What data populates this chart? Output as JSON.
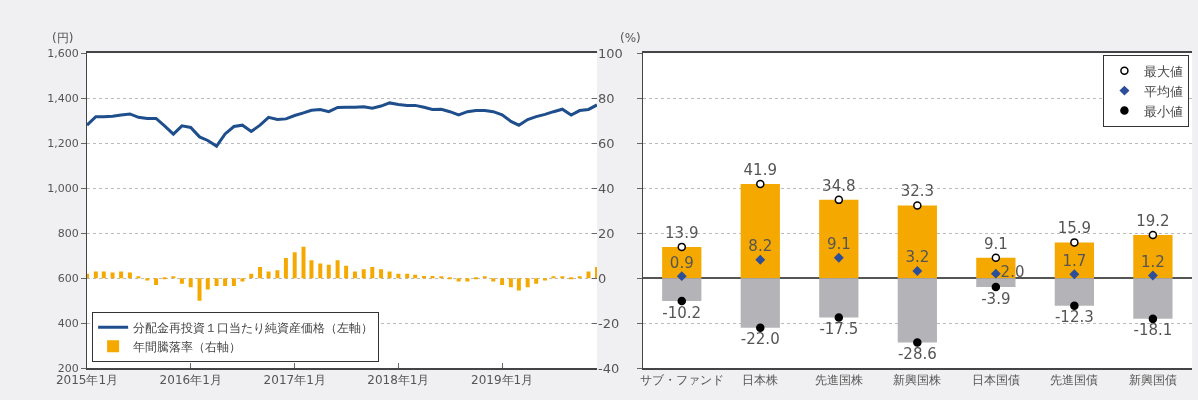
{
  "chart_data": [
    {
      "type": "line",
      "ylabel": "(円)",
      "x": [
        "2015-01",
        "2015-02",
        "2015-03",
        "2015-04",
        "2015-05",
        "2015-06",
        "2015-07",
        "2015-08",
        "2015-09",
        "2015-10",
        "2015-11",
        "2015-12",
        "2016-01",
        "2016-02",
        "2016-03",
        "2016-04",
        "2016-05",
        "2016-06",
        "2016-07",
        "2016-08",
        "2016-09",
        "2016-10",
        "2016-11",
        "2016-12",
        "2017-01",
        "2017-02",
        "2017-03",
        "2017-04",
        "2017-05",
        "2017-06",
        "2017-07",
        "2017-08",
        "2017-09",
        "2017-10",
        "2017-11",
        "2017-12",
        "2018-01",
        "2018-02",
        "2018-03",
        "2018-04",
        "2018-05",
        "2018-06",
        "2018-07",
        "2018-08",
        "2018-09",
        "2018-10",
        "2018-11",
        "2018-12",
        "2019-01",
        "2019-02",
        "2019-03",
        "2019-04",
        "2019-05",
        "2019-06",
        "2019-07",
        "2019-08",
        "2019-09",
        "2019-10",
        "2019-11",
        "2019-12"
      ],
      "xlim": [
        "2015-01",
        "2019-12"
      ],
      "xticks": [
        {
          "value": "2015-01",
          "label": "2015年1月"
        },
        {
          "value": "2016-01",
          "label": "2016年1月"
        },
        {
          "value": "2017-01",
          "label": "2017年1月"
        },
        {
          "value": "2018-01",
          "label": "2018年1月"
        },
        {
          "value": "2019-01",
          "label": "2019年1月"
        }
      ],
      "ylim": [
        200,
        1600
      ],
      "yticks": [
        200,
        400,
        600,
        800,
        {
          "value": 1000,
          "label": "1,000"
        },
        {
          "value": 1200,
          "label": "1,200"
        },
        {
          "value": 1400,
          "label": "1,400"
        },
        {
          "value": 1600,
          "label": "1,600"
        }
      ],
      "y2lim": [
        -40,
        100
      ],
      "y2ticks": [
        -40,
        -20,
        0,
        20,
        40,
        60,
        80,
        100
      ],
      "grid": "y",
      "legend": "bottom left",
      "series": [
        {
          "name": "分配金再投資１口当たり純資産価格（左軸）",
          "color": "#1f4e8c",
          "values": [
            1280,
            1318,
            1318,
            1320,
            1325,
            1330,
            1315,
            1310,
            1310,
            1277,
            1240,
            1277,
            1270,
            1228,
            1212,
            1187,
            1241,
            1274,
            1280,
            1252,
            1280,
            1315,
            1305,
            1308,
            1323,
            1335,
            1346,
            1350,
            1340,
            1359,
            1360,
            1360,
            1362,
            1355,
            1365,
            1379,
            1372,
            1368,
            1368,
            1360,
            1350,
            1351,
            1340,
            1326,
            1340,
            1345,
            1345,
            1340,
            1326,
            1297,
            1280,
            1305,
            1318,
            1328,
            1340,
            1351,
            1325,
            1345,
            1350,
            1370
          ]
        },
        {
          "name": "年間騰落率（右軸）",
          "type": "bar",
          "axis": "y2",
          "color": "#f5a800",
          "values": [
            2,
            3,
            3,
            2.5,
            3,
            2.5,
            0.5,
            -1,
            -3,
            -0.5,
            0.5,
            -2.5,
            -4,
            -10,
            -5,
            -3.5,
            -3.5,
            -3.5,
            -1.5,
            2,
            5,
            3,
            3.5,
            9,
            11.5,
            14,
            8,
            6.5,
            6,
            8,
            5.5,
            3,
            4,
            5,
            4,
            3,
            2,
            2,
            1.5,
            1,
            1,
            0.5,
            -0.5,
            -1.5,
            -1.5,
            -0.5,
            0.5,
            -1.5,
            -3,
            -4,
            -5.5,
            -4,
            -2.5,
            -1,
            0.5,
            0.5,
            -0.5,
            0.5,
            3,
            5
          ]
        }
      ]
    },
    {
      "type": "bar",
      "ylabel": "(%)",
      "categories": [
        "サブ・ファンド",
        "日本株",
        "先進国株",
        "新興国株",
        "日本国債",
        "先進国債",
        "新興国債"
      ],
      "ylim": [
        -40,
        100
      ],
      "yticks": [
        -40,
        -20,
        0,
        20,
        40,
        60,
        80,
        100
      ],
      "tick_labels": "x",
      "grid": "y",
      "stacked": true,
      "legend": "top right",
      "series": [
        {
          "color": "#f5a800",
          "values": [
            13.9,
            41.9,
            34.8,
            32.3,
            9.1,
            15.9,
            19.2
          ]
        },
        {
          "color": "#b4b4b8",
          "values": [
            -10.2,
            -22.0,
            -17.5,
            -28.6,
            -3.9,
            -12.3,
            -18.1
          ]
        },
        {
          "name": "最大値",
          "type": "scatter",
          "marker": "circle",
          "color": "#ffffff",
          "values": [
            13.9,
            41.9,
            34.8,
            32.3,
            9.1,
            15.9,
            19.2
          ],
          "value_labels": [
            "13.9",
            "41.9",
            "34.8",
            "32.3",
            "9.1",
            "15.9",
            "19.2"
          ]
        },
        {
          "name": "平均値",
          "type": "scatter",
          "marker": "diamond",
          "color": "#2d4f9a",
          "values": [
            0.9,
            8.2,
            9.1,
            3.2,
            2.0,
            1.7,
            1.2
          ],
          "value_labels": [
            "0.9",
            "8.2",
            "9.1",
            "3.2",
            "2.0",
            "1.7",
            "1.2"
          ]
        },
        {
          "name": "最小値",
          "type": "scatter",
          "marker": "circle",
          "color": "#000000",
          "values": [
            -10.2,
            -22.0,
            -17.5,
            -28.6,
            -3.9,
            -12.3,
            -18.1
          ],
          "value_labels": [
            "-10.2",
            "-22.0",
            "-17.5",
            "-28.6",
            "-3.9",
            "-12.3",
            "-18.1"
          ]
        }
      ]
    }
  ]
}
